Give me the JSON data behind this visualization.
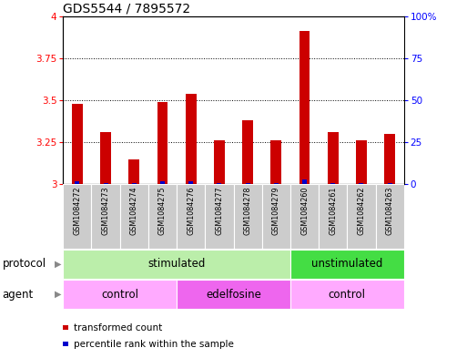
{
  "title": "GDS5544 / 7895572",
  "samples": [
    "GSM1084272",
    "GSM1084273",
    "GSM1084274",
    "GSM1084275",
    "GSM1084276",
    "GSM1084277",
    "GSM1084278",
    "GSM1084279",
    "GSM1084260",
    "GSM1084261",
    "GSM1084262",
    "GSM1084263"
  ],
  "transformed_counts": [
    3.48,
    3.31,
    3.15,
    3.49,
    3.54,
    3.26,
    3.38,
    3.26,
    3.91,
    3.31,
    3.26,
    3.3
  ],
  "percentile_ranks": [
    2,
    1,
    1,
    2,
    2,
    1,
    1,
    1,
    3,
    1,
    1,
    1
  ],
  "ylim_left": [
    3.0,
    4.0
  ],
  "ylim_right": [
    0,
    100
  ],
  "yticks_left": [
    3.0,
    3.25,
    3.5,
    3.75,
    4.0
  ],
  "ytick_labels_left": [
    "3",
    "3.25",
    "3.5",
    "3.75",
    "4"
  ],
  "yticks_right": [
    0,
    25,
    50,
    75,
    100
  ],
  "ytick_labels_right": [
    "0",
    "25",
    "50",
    "75",
    "100%"
  ],
  "bar_color_red": "#cc0000",
  "bar_color_blue": "#0000cc",
  "protocol_groups": [
    {
      "label": "stimulated",
      "start": 0,
      "end": 7,
      "color": "#bbeeaa"
    },
    {
      "label": "unstimulated",
      "start": 8,
      "end": 11,
      "color": "#44dd44"
    }
  ],
  "agent_groups": [
    {
      "label": "control",
      "start": 0,
      "end": 3,
      "color": "#ffaaff"
    },
    {
      "label": "edelfosine",
      "start": 4,
      "end": 7,
      "color": "#ee66ee"
    },
    {
      "label": "control",
      "start": 8,
      "end": 11,
      "color": "#ffaaff"
    }
  ],
  "legend_items": [
    {
      "label": "transformed count",
      "color": "#cc0000"
    },
    {
      "label": "percentile rank within the sample",
      "color": "#0000cc"
    }
  ],
  "sample_bg_color": "#cccccc",
  "title_fontsize": 10,
  "tick_fontsize": 7.5,
  "label_fontsize": 8.5,
  "sample_fontsize": 5.8,
  "legend_fontsize": 7.5
}
